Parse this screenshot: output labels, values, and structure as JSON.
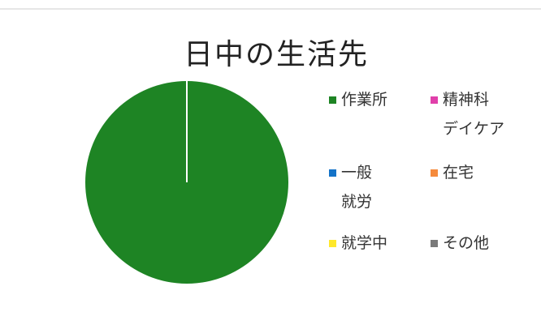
{
  "chart_data": {
    "type": "pie",
    "title": "日中の生活先",
    "categories": [
      "作業所",
      "精神科デイケア",
      "一般就労",
      "在宅",
      "就学中",
      "その他"
    ],
    "values": [
      100,
      0,
      0,
      0,
      0,
      0
    ],
    "colors": [
      "#1e8424",
      "#e03faa",
      "#1473c8",
      "#f58a3c",
      "#ffe82a",
      "#7a7a7a"
    ],
    "legend": [
      {
        "lines": [
          "作業所"
        ],
        "color": "#1e8424"
      },
      {
        "lines": [
          "精神科",
          "デイケア"
        ],
        "color": "#e03faa"
      },
      {
        "lines": [
          "一般",
          "就労"
        ],
        "color": "#1473c8"
      },
      {
        "lines": [
          "在宅"
        ],
        "color": "#f58a3c"
      },
      {
        "lines": [
          "就学中"
        ],
        "color": "#ffe82a"
      },
      {
        "lines": [
          "その他"
        ],
        "color": "#7a7a7a"
      }
    ],
    "legend_position": "right"
  }
}
